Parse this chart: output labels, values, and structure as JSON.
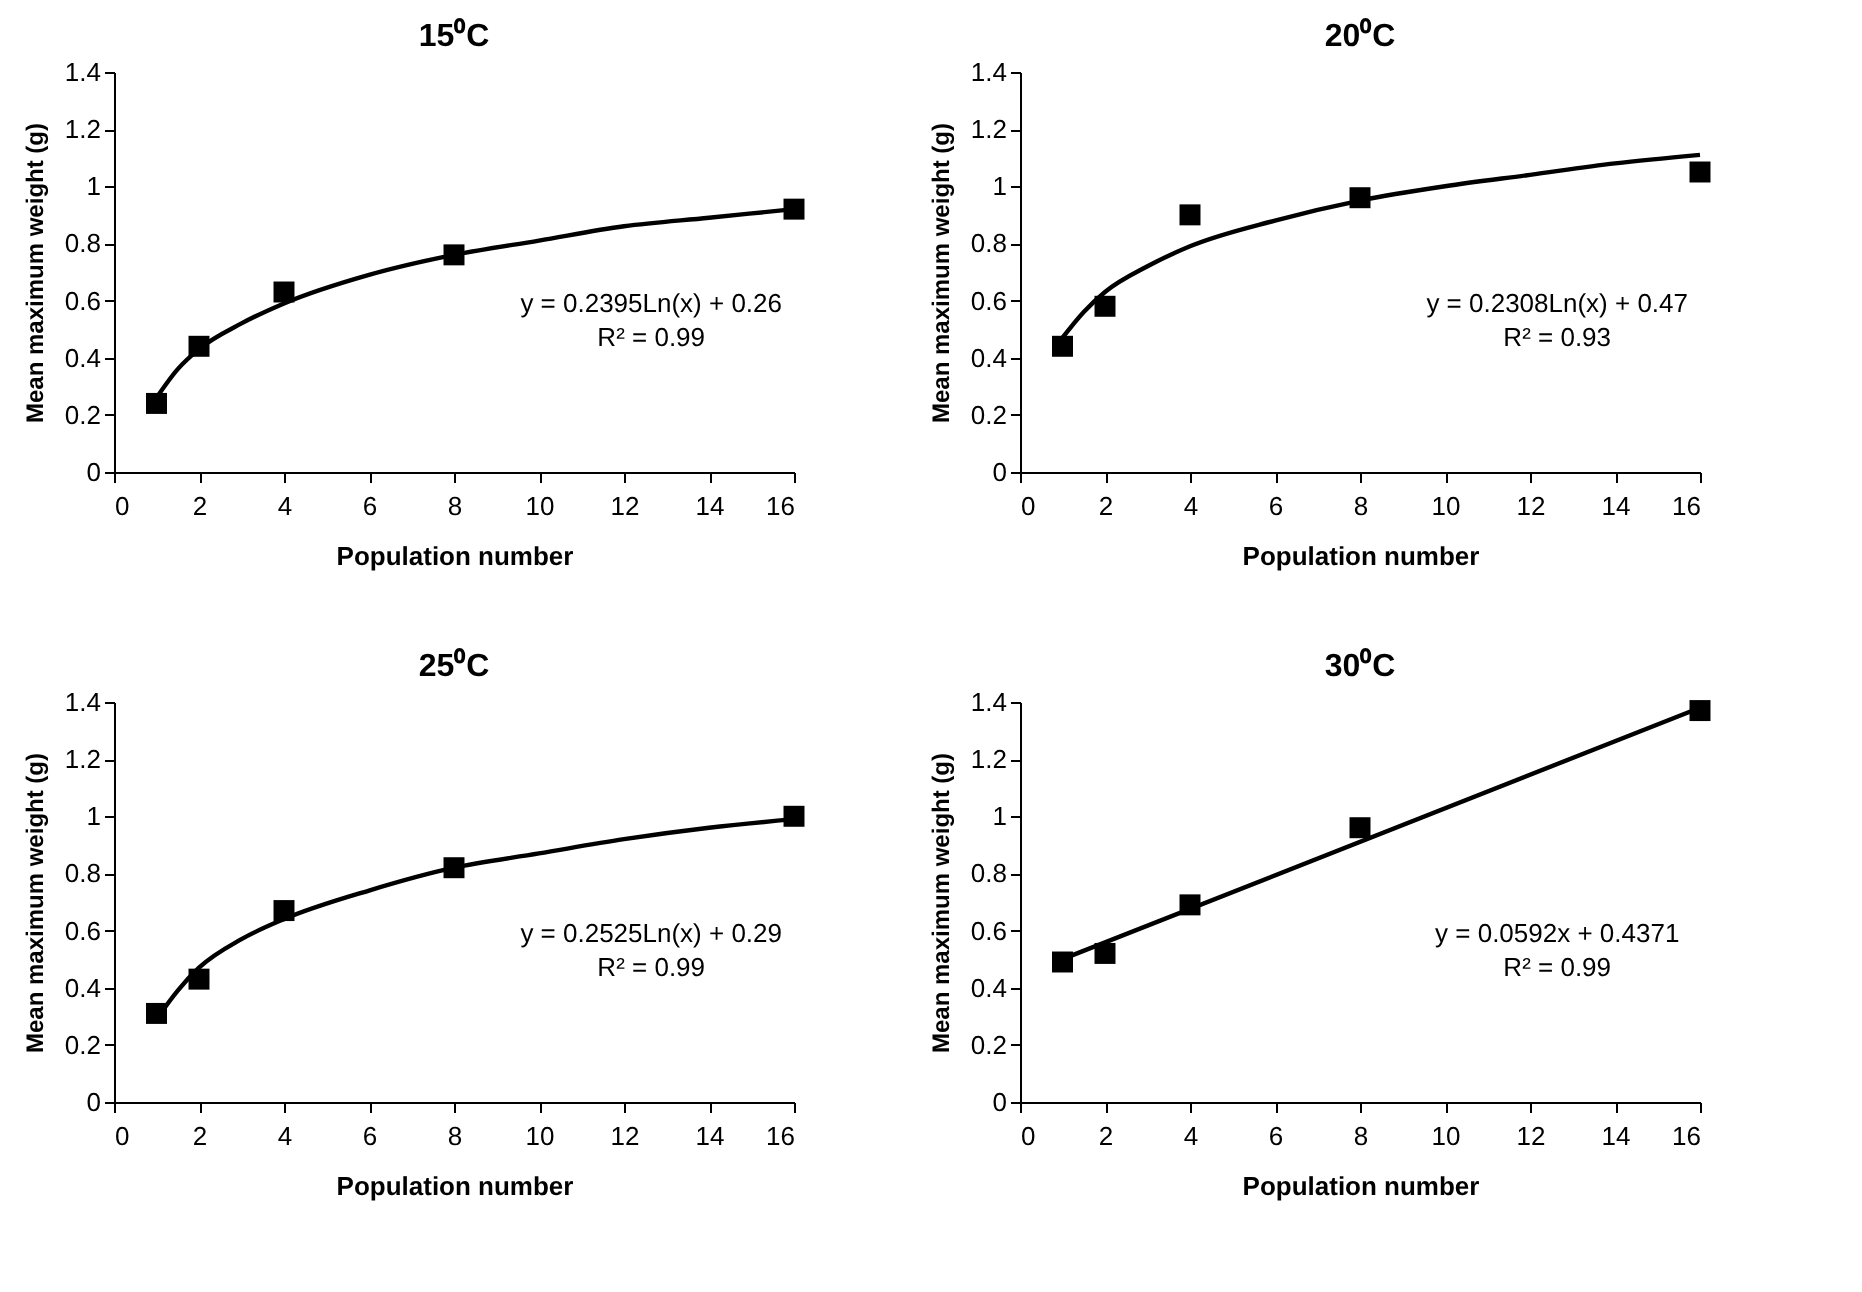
{
  "chart_data": [
    {
      "type": "scatter",
      "title": "15⁰C",
      "xlabel": "Population number",
      "ylabel": "Mean maximum weight (g)",
      "xlim": [
        0,
        16
      ],
      "xticks": [
        0,
        2,
        4,
        6,
        8,
        10,
        12,
        14,
        16
      ],
      "ylim": [
        0,
        1.4
      ],
      "yticks": [
        0,
        0.2,
        0.4,
        0.6,
        0.8,
        1,
        1.2,
        1.4
      ],
      "x": [
        1,
        2,
        4,
        8,
        16
      ],
      "marker": "square",
      "annotations": [
        "y = 0.2395Ln(x) + 0.26",
        "R² = 0.99"
      ],
      "series": [
        {
          "type": "scatter",
          "color": "#000000",
          "values": [
            0.24,
            0.44,
            0.63,
            0.76,
            0.92
          ]
        },
        {
          "type": "line",
          "color": "#000000",
          "marker": "none",
          "x": [
            1,
            1.5,
            2,
            3,
            4,
            6,
            8,
            10,
            12,
            14,
            16
          ],
          "values": [
            0.26,
            0.36,
            0.43,
            0.52,
            0.59,
            0.69,
            0.76,
            0.81,
            0.86,
            0.89,
            0.92
          ]
        }
      ]
    },
    {
      "type": "scatter",
      "title": "20⁰C",
      "xlabel": "Population number",
      "ylabel": "Mean maximum weight (g)",
      "xlim": [
        0,
        16
      ],
      "xticks": [
        0,
        2,
        4,
        6,
        8,
        10,
        12,
        14,
        16
      ],
      "ylim": [
        0,
        1.4
      ],
      "yticks": [
        0,
        0.2,
        0.4,
        0.6,
        0.8,
        1,
        1.2,
        1.4
      ],
      "x": [
        1,
        2,
        4,
        8,
        16
      ],
      "marker": "square",
      "annotations": [
        "y = 0.2308Ln(x) + 0.47",
        "R² = 0.93"
      ],
      "series": [
        {
          "type": "scatter",
          "color": "#000000",
          "values": [
            0.44,
            0.58,
            0.9,
            0.96,
            1.05
          ]
        },
        {
          "type": "line",
          "color": "#000000",
          "marker": "none",
          "x": [
            1,
            1.5,
            2,
            3,
            4,
            6,
            8,
            10,
            12,
            14,
            16
          ],
          "values": [
            0.47,
            0.56,
            0.63,
            0.72,
            0.79,
            0.88,
            0.95,
            1.0,
            1.04,
            1.08,
            1.11
          ]
        }
      ]
    },
    {
      "type": "scatter",
      "title": "25⁰C",
      "xlabel": "Population number",
      "ylabel": "Mean maximum weight (g)",
      "xlim": [
        0,
        16
      ],
      "xticks": [
        0,
        2,
        4,
        6,
        8,
        10,
        12,
        14,
        16
      ],
      "ylim": [
        0,
        1.4
      ],
      "yticks": [
        0,
        0.2,
        0.4,
        0.6,
        0.8,
        1,
        1.2,
        1.4
      ],
      "x": [
        1,
        2,
        4,
        8,
        16
      ],
      "marker": "square",
      "annotations": [
        "y = 0.2525Ln(x) + 0.29",
        "R² = 0.99"
      ],
      "series": [
        {
          "type": "scatter",
          "color": "#000000",
          "values": [
            0.31,
            0.43,
            0.67,
            0.82,
            1.0
          ]
        },
        {
          "type": "line",
          "color": "#000000",
          "marker": "none",
          "x": [
            1,
            1.5,
            2,
            3,
            4,
            6,
            8,
            10,
            12,
            14,
            16
          ],
          "values": [
            0.29,
            0.39,
            0.47,
            0.57,
            0.64,
            0.74,
            0.82,
            0.87,
            0.92,
            0.96,
            0.99
          ]
        }
      ]
    },
    {
      "type": "scatter",
      "title": "30⁰C",
      "xlabel": "Population number",
      "ylabel": "Mean maximum weight (g)",
      "xlim": [
        0,
        16
      ],
      "xticks": [
        0,
        2,
        4,
        6,
        8,
        10,
        12,
        14,
        16
      ],
      "ylim": [
        0,
        1.4
      ],
      "yticks": [
        0,
        0.2,
        0.4,
        0.6,
        0.8,
        1,
        1.2,
        1.4
      ],
      "x": [
        1,
        2,
        4,
        8,
        16
      ],
      "marker": "square",
      "annotations": [
        "y = 0.0592x + 0.4371",
        "R² = 0.99"
      ],
      "series": [
        {
          "type": "scatter",
          "color": "#000000",
          "values": [
            0.49,
            0.52,
            0.69,
            0.96,
            1.37
          ]
        },
        {
          "type": "line",
          "color": "#000000",
          "marker": "none",
          "x": [
            1,
            16
          ],
          "values": [
            0.5,
            1.38
          ]
        }
      ]
    }
  ]
}
